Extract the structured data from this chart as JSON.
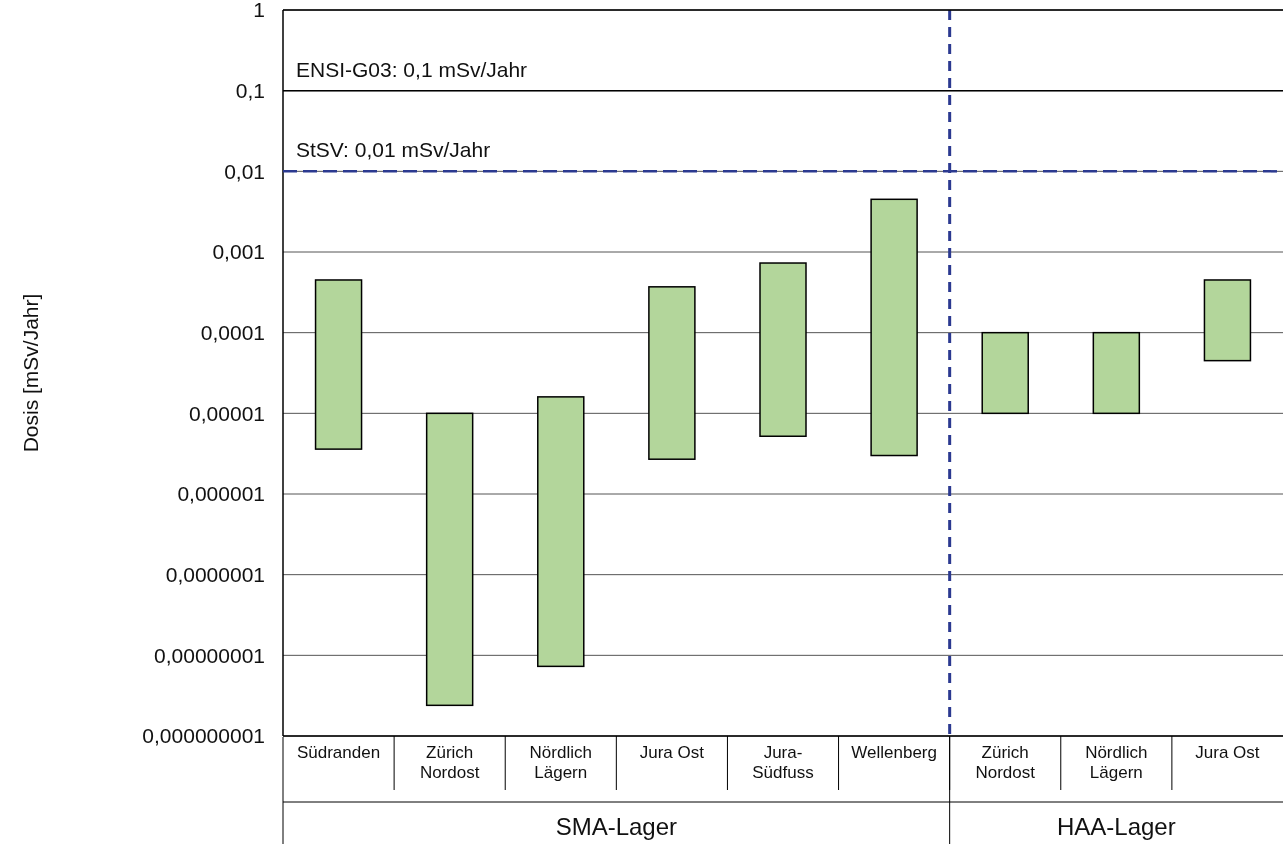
{
  "chart_data": {
    "type": "bar",
    "ylabel": "Dosis [mSv/Jahr]",
    "log": true,
    "grid": "y",
    "categories": [
      "Südranden",
      "Zürich Nordost",
      "Nördlich Lägern",
      "Jura Ost",
      "Jura-Südfuss",
      "Wellenberg",
      "Zürich Nordost",
      "Nördlich Lägern",
      "Jura Ost"
    ],
    "base": [
      3.6e-06,
      2.4e-09,
      7.3e-09,
      2.7e-06,
      5.2e-06,
      3e-06,
      1e-05,
      1e-05,
      4.5e-05
    ],
    "values": [
      0.0004464,
      9.9976e-06,
      1.59927e-05,
      0.0003673,
      0.0007248,
      0.004497,
      9e-05,
      9e-05,
      0.000405
    ],
    "color": "#b3d69b",
    "ylim": [
      1e-09,
      1
    ],
    "yticks": [
      {
        "value": 1e-09,
        "label": "0,000000001"
      },
      {
        "value": 1e-08,
        "label": "0,00000001"
      },
      {
        "value": 1e-07,
        "label": "0,0000001"
      },
      {
        "value": 1e-06,
        "label": "0,000001"
      },
      {
        "value": 1e-05,
        "label": "0,00001"
      },
      {
        "value": 0.0001,
        "label": "0,0001"
      },
      {
        "value": 0.001,
        "label": "0,001"
      },
      {
        "value": 0.01,
        "label": "0,01"
      },
      {
        "value": 0.1,
        "label": "0,1"
      },
      1
    ],
    "ref_lines": [
      {
        "axis": "y",
        "value": 0.1,
        "label": "ENSI-G03: 0,1 mSv/Jahr",
        "color": "#000000",
        "line_style": "solid"
      },
      {
        "axis": "y",
        "value": 0.01,
        "label": "StSV: 0,01 mSv/Jahr",
        "color": "#2b3990",
        "line_style": "dashed"
      }
    ],
    "annotations": [
      "SMA-Lager",
      "HAA-Lager"
    ]
  }
}
